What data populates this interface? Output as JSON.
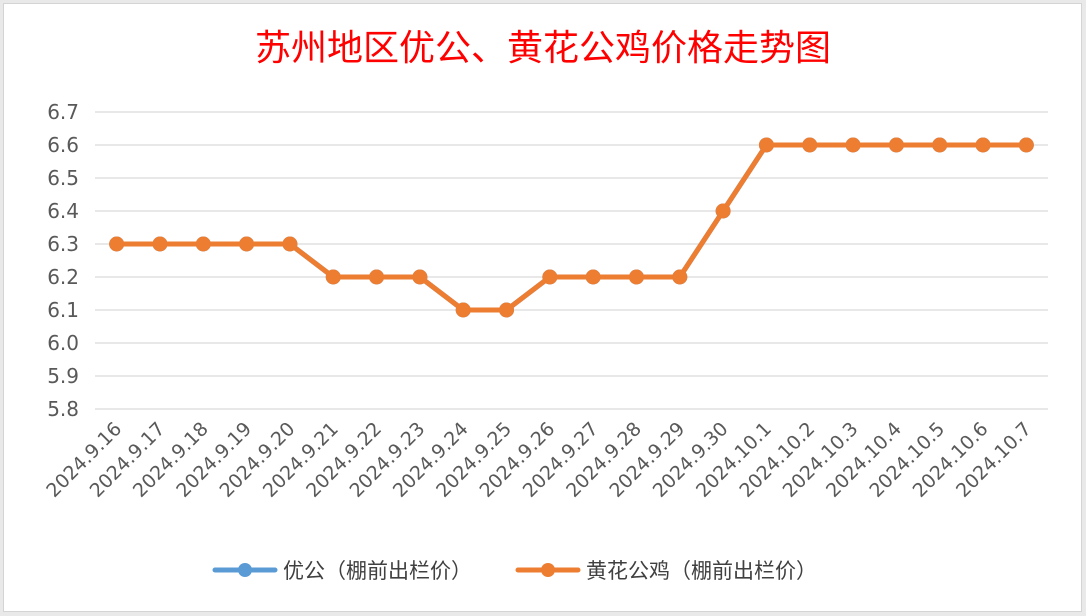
{
  "chart_data": {
    "type": "line",
    "title": "苏州地区优公、黄花公鸡价格走势图",
    "xlabel": "",
    "ylabel": "",
    "categories": [
      "2024.9.16",
      "2024.9.17",
      "2024.9.18",
      "2024.9.19",
      "2024.9.20",
      "2024.9.21",
      "2024.9.22",
      "2024.9.23",
      "2024.9.24",
      "2024.9.25",
      "2024.9.26",
      "2024.9.27",
      "2024.9.28",
      "2024.9.29",
      "2024.9.30",
      "2024.10.1",
      "2024.10.2",
      "2024.10.3",
      "2024.10.4",
      "2024.10.5",
      "2024.10.6",
      "2024.10.7"
    ],
    "ylim": [
      5.8,
      6.7
    ],
    "yticks": [
      "5.8",
      "5.9",
      "6.0",
      "6.1",
      "6.2",
      "6.3",
      "6.4",
      "6.5",
      "6.6",
      "6.7"
    ],
    "grid": true,
    "legend_position": "bottom",
    "series": [
      {
        "name": "优公（棚前出栏价）",
        "color": "#5b9bd5",
        "values": [
          6.3,
          6.3,
          6.3,
          6.3,
          6.3,
          6.2,
          6.2,
          6.2,
          6.1,
          6.1,
          6.2,
          6.2,
          6.2,
          6.2,
          6.4,
          6.6,
          6.6,
          6.6,
          6.6,
          6.6,
          6.6,
          6.6
        ]
      },
      {
        "name": "黄花公鸡（棚前出栏价）",
        "color": "#ed7d31",
        "values": [
          6.3,
          6.3,
          6.3,
          6.3,
          6.3,
          6.2,
          6.2,
          6.2,
          6.1,
          6.1,
          6.2,
          6.2,
          6.2,
          6.2,
          6.4,
          6.6,
          6.6,
          6.6,
          6.6,
          6.6,
          6.6,
          6.6
        ]
      }
    ]
  }
}
